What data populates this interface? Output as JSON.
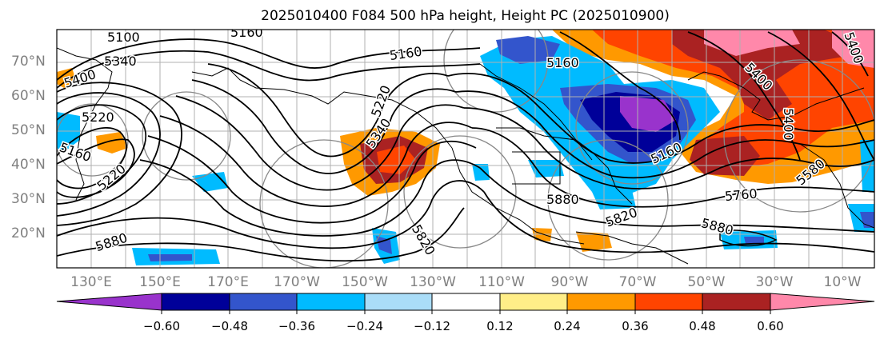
{
  "title": "2025010400 F084 500 hPa height, Height PC (2025010900)",
  "lat_labels": [
    "70°N",
    "60°N",
    "50°N",
    "40°N",
    "30°N",
    "20°N"
  ],
  "lon_labels": [
    "130°E",
    "150°E",
    "170°E",
    "170°W",
    "150°W",
    "130°W",
    "110°W",
    "90°W",
    "70°W",
    "50°W",
    "30°W",
    "10°W"
  ],
  "colorbar": {
    "colors": [
      "#9933cc",
      "#000099",
      "#3355cc",
      "#00bbff",
      "#aaddf8",
      "#ffffff",
      "#ffee88",
      "#ff9900",
      "#ff4400",
      "#aa2222",
      "#ff88aa"
    ],
    "tick_labels": [
      "−0.60",
      "−0.48",
      "−0.36",
      "−0.24",
      "−0.12",
      "0.12",
      "0.24",
      "0.36",
      "0.48",
      "0.60"
    ]
  },
  "contour_labels": [
    "5100",
    "5160",
    "5340",
    "5400",
    "5160",
    "5220",
    "5160",
    "5220",
    "5160",
    "5400",
    "5220",
    "5340",
    "5880",
    "5820",
    "5880",
    "5820",
    "5760",
    "5880",
    "5160",
    "5400",
    "5580",
    "5400"
  ]
}
